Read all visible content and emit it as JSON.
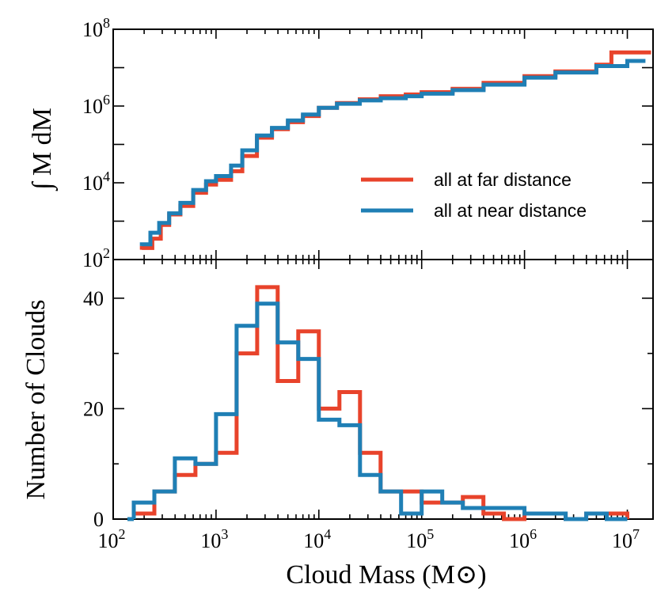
{
  "chart_data": [
    {
      "type": "line",
      "id": "cumulative",
      "ylabel": "∫ M dM",
      "xscale": "log",
      "yscale": "log",
      "xlim": [
        100,
        17782794
      ],
      "ylim": [
        100,
        100000000
      ],
      "yticks": [
        {
          "value": 100,
          "base": "10",
          "exp": "2"
        },
        {
          "value": 10000,
          "base": "10",
          "exp": "4"
        },
        {
          "value": 1000000,
          "base": "10",
          "exp": "6"
        },
        {
          "value": 100000000,
          "base": "10",
          "exp": "8"
        }
      ],
      "legend_position": "center-right",
      "series": [
        {
          "name": "all at far distance",
          "color": "#e8432b",
          "x": [
            190,
            240,
            290,
            350,
            450,
            600,
            800,
            1000,
            1400,
            1800,
            2500,
            3500,
            5000,
            7000,
            10000,
            15000,
            25000,
            40000,
            70000,
            100000,
            200000,
            400000,
            1000000,
            2000000,
            5000000,
            7000000,
            17000000
          ],
          "y": [
            200,
            350,
            800,
            1500,
            2500,
            5500,
            9000,
            12000,
            20000,
            50000,
            150000,
            250000,
            380000,
            550000,
            900000,
            1200000,
            1500000,
            1800000,
            2000000,
            2300000,
            2800000,
            4000000,
            6000000,
            8000000,
            12000000,
            25000000,
            25000000
          ]
        },
        {
          "name": "all at near distance",
          "color": "#1f7fb5",
          "x": [
            190,
            230,
            280,
            350,
            450,
            600,
            800,
            1000,
            1400,
            1800,
            2500,
            3500,
            5000,
            7000,
            10000,
            15000,
            25000,
            40000,
            70000,
            100000,
            200000,
            400000,
            1000000,
            2000000,
            5000000,
            10000000,
            15000000
          ],
          "y": [
            250,
            500,
            900,
            1600,
            3000,
            6500,
            11000,
            15000,
            28000,
            70000,
            170000,
            270000,
            420000,
            600000,
            900000,
            1150000,
            1400000,
            1600000,
            1800000,
            2100000,
            2600000,
            3600000,
            5500000,
            7500000,
            11000000,
            15000000,
            15000000
          ]
        }
      ]
    },
    {
      "type": "histogram",
      "id": "histogram",
      "xlabel": "Cloud Mass  (M⊙)",
      "ylabel": "Number of Clouds",
      "xscale": "log",
      "xlim": [
        100,
        17782794
      ],
      "ylim": [
        0,
        47
      ],
      "yticks": [
        {
          "value": 0,
          "label": "0"
        },
        {
          "value": 20,
          "label": "20"
        },
        {
          "value": 40,
          "label": "40"
        }
      ],
      "xticks": [
        {
          "value": 100,
          "base": "10",
          "exp": "2"
        },
        {
          "value": 1000,
          "base": "10",
          "exp": "3"
        },
        {
          "value": 10000,
          "base": "10",
          "exp": "4"
        },
        {
          "value": 100000,
          "base": "10",
          "exp": "5"
        },
        {
          "value": 1000000,
          "base": "10",
          "exp": "6"
        },
        {
          "value": 10000000,
          "base": "10",
          "exp": "7"
        }
      ],
      "bin_edges_log10": [
        2.2,
        2.4,
        2.6,
        2.8,
        3.0,
        3.2,
        3.4,
        3.6,
        3.8,
        4.0,
        4.2,
        4.4,
        4.6,
        4.8,
        5.0,
        5.2,
        5.4,
        5.6,
        5.8,
        6.0,
        6.2,
        6.4,
        6.6,
        6.8,
        7.0
      ],
      "series": [
        {
          "name": "all at far distance",
          "color": "#e8432b",
          "values": [
            1,
            5,
            8,
            10,
            12,
            30,
            42,
            25,
            34,
            20,
            23,
            12,
            5,
            5,
            3,
            3,
            4,
            1,
            0,
            1,
            1,
            0,
            1,
            1
          ]
        },
        {
          "name": "all at near distance",
          "color": "#1f7fb5",
          "values": [
            3,
            5,
            11,
            10,
            19,
            35,
            39,
            32,
            29,
            18,
            17,
            8,
            5,
            1,
            5,
            3,
            2,
            2,
            2,
            1,
            1,
            0,
            1,
            0
          ]
        }
      ]
    }
  ]
}
